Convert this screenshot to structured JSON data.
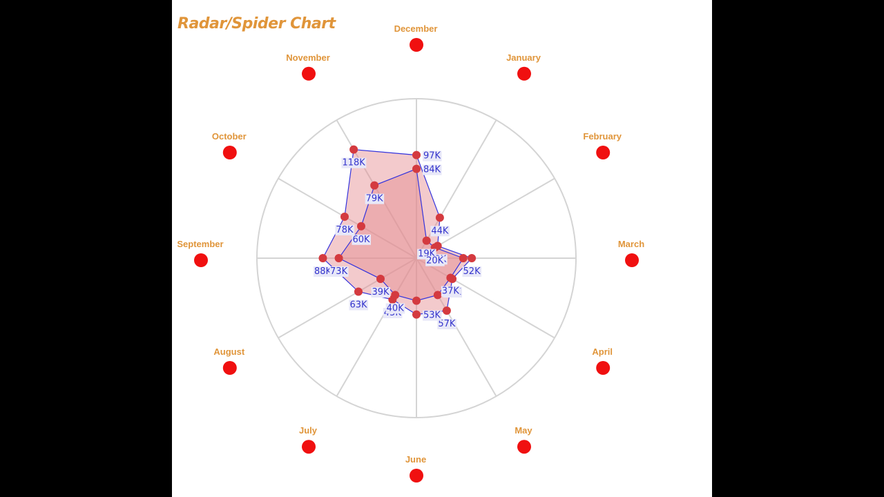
{
  "title": "Radar/Spider Chart",
  "colors": {
    "month_label": "#e0953a",
    "month_dot": "#f01010",
    "series_stroke": "#3333dd",
    "series_fill": "#e58a8d",
    "point": "#d43a3f",
    "value_label": "#3333cc",
    "value_label_bg": "#e8e8f8",
    "grid": "#d4d4d4"
  },
  "chart_data": {
    "type": "radar",
    "title": "Radar/Spider Chart",
    "categories": [
      "December",
      "January",
      "February",
      "March",
      "April",
      "May",
      "June",
      "July",
      "August",
      "September",
      "October",
      "November"
    ],
    "rlim": [
      0,
      150
    ],
    "grid": true,
    "series": [
      {
        "values": [
          97,
          44,
          23,
          52,
          39,
          57,
          53,
          45,
          63,
          88,
          78,
          118
        ],
        "labels": [
          "97K",
          "44K",
          "23K",
          "52K",
          "39K",
          "57K",
          "53K",
          "45K",
          "63K",
          "88K",
          "78K",
          "118K"
        ]
      },
      {
        "values": [
          84,
          19,
          20,
          44,
          37,
          40,
          40,
          40,
          39,
          73,
          60,
          79
        ],
        "labels": [
          "84K",
          "19K",
          "20K",
          "",
          "37K",
          "",
          "",
          "40K",
          "39K",
          "73K",
          "60K",
          "79K"
        ]
      }
    ]
  }
}
